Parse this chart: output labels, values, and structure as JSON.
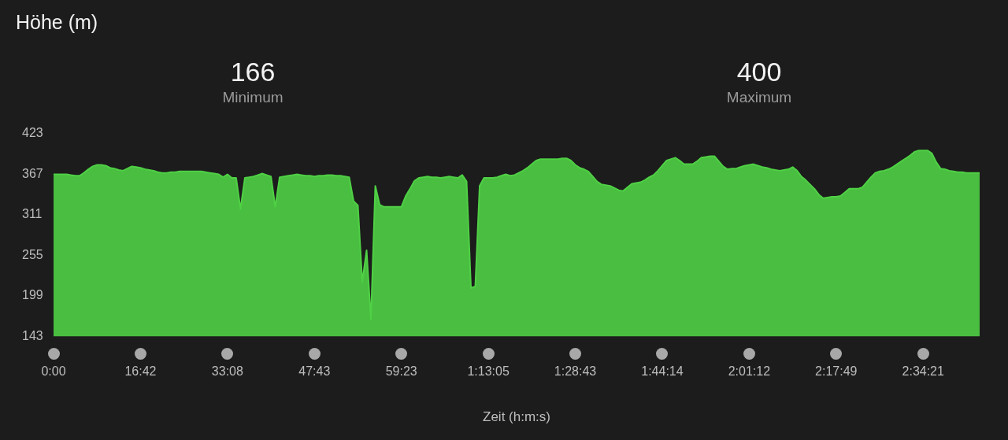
{
  "chart_data": {
    "type": "area",
    "title": "Höhe (m)",
    "xlabel": "Zeit (h:m:s)",
    "annotations": [
      "166",
      "Minimum",
      "400",
      "Maximum"
    ],
    "categories": [
      "0:00",
      null,
      null,
      null,
      null,
      null,
      null,
      null,
      null,
      null,
      null,
      null,
      null,
      null,
      null,
      null,
      null,
      null,
      null,
      null,
      "16:42",
      null,
      null,
      null,
      null,
      null,
      null,
      null,
      null,
      null,
      null,
      null,
      null,
      null,
      null,
      null,
      null,
      null,
      null,
      null,
      "33:08",
      null,
      null,
      null,
      null,
      null,
      null,
      null,
      null,
      null,
      null,
      null,
      null,
      null,
      null,
      null,
      null,
      null,
      null,
      null,
      "47:43",
      null,
      null,
      null,
      null,
      null,
      null,
      null,
      null,
      null,
      null,
      null,
      null,
      null,
      null,
      null,
      null,
      null,
      null,
      null,
      "59:23",
      null,
      null,
      null,
      null,
      null,
      null,
      null,
      null,
      null,
      null,
      null,
      null,
      null,
      null,
      null,
      null,
      null,
      null,
      null,
      "1:13:05",
      null,
      null,
      null,
      null,
      null,
      null,
      null,
      null,
      null,
      null,
      null,
      null,
      null,
      null,
      null,
      null,
      null,
      null,
      null,
      "1:28:43",
      null,
      null,
      null,
      null,
      null,
      null,
      null,
      null,
      null,
      null,
      null,
      null,
      null,
      null,
      null,
      null,
      null,
      null,
      null,
      "1:44:14",
      null,
      null,
      null,
      null,
      null,
      null,
      null,
      null,
      null,
      null,
      null,
      null,
      null,
      null,
      null,
      null,
      null,
      null,
      null,
      "2:01:12",
      null,
      null,
      null,
      null,
      null,
      null,
      null,
      null,
      null,
      null,
      null,
      null,
      null,
      null,
      null,
      null,
      null,
      null,
      null,
      "2:17:49",
      null,
      null,
      null,
      null,
      null,
      null,
      null,
      null,
      null,
      null,
      null,
      null,
      null,
      null,
      null,
      null,
      null,
      null,
      null,
      "2:34:21",
      null,
      null,
      null,
      null,
      null,
      null,
      null,
      null,
      null,
      null,
      null,
      null,
      null
    ],
    "ylim": [
      143,
      423
    ],
    "yticks": [
      143,
      199,
      255,
      311,
      367,
      423
    ],
    "grid": false,
    "legend": false,
    "marker": "none",
    "series": [
      {
        "color": "#4fd045",
        "values": [
          367,
          367,
          367,
          367,
          366,
          365,
          365,
          369,
          374,
          378,
          380,
          380,
          379,
          376,
          375,
          373,
          372,
          375,
          378,
          377,
          376,
          374,
          373,
          372,
          370,
          369,
          369,
          370,
          370,
          371,
          371,
          371,
          371,
          371,
          371,
          370,
          369,
          368,
          367,
          363,
          367,
          362,
          362,
          319,
          362,
          363,
          364,
          366,
          368,
          366,
          364,
          322,
          363,
          364,
          365,
          366,
          367,
          366,
          365,
          365,
          364,
          365,
          365,
          366,
          366,
          365,
          365,
          364,
          363,
          330,
          324,
          218,
          262,
          166,
          351,
          325,
          322,
          322,
          322,
          322,
          322,
          337,
          347,
          358,
          362,
          363,
          364,
          363,
          363,
          362,
          363,
          364,
          363,
          362,
          366,
          357,
          210,
          212,
          351,
          362,
          362,
          362,
          363,
          365,
          367,
          365,
          366,
          369,
          372,
          376,
          381,
          386,
          388,
          388,
          388,
          388,
          388,
          389,
          389,
          386,
          380,
          376,
          374,
          371,
          364,
          357,
          353,
          352,
          351,
          348,
          345,
          344,
          349,
          354,
          355,
          356,
          359,
          363,
          366,
          372,
          379,
          386,
          388,
          390,
          386,
          381,
          381,
          381,
          385,
          390,
          391,
          392,
          392,
          385,
          378,
          374,
          375,
          375,
          377,
          379,
          380,
          381,
          379,
          377,
          376,
          374,
          373,
          372,
          373,
          374,
          377,
          372,
          364,
          359,
          353,
          347,
          339,
          334,
          335,
          336,
          336,
          337,
          342,
          347,
          347,
          347,
          349,
          356,
          363,
          369,
          371,
          372,
          374,
          377,
          381,
          385,
          389,
          393,
          398,
          400,
          400,
          400,
          396,
          384,
          375,
          374,
          372,
          371,
          370,
          370,
          369,
          369,
          369,
          369
        ]
      }
    ]
  }
}
